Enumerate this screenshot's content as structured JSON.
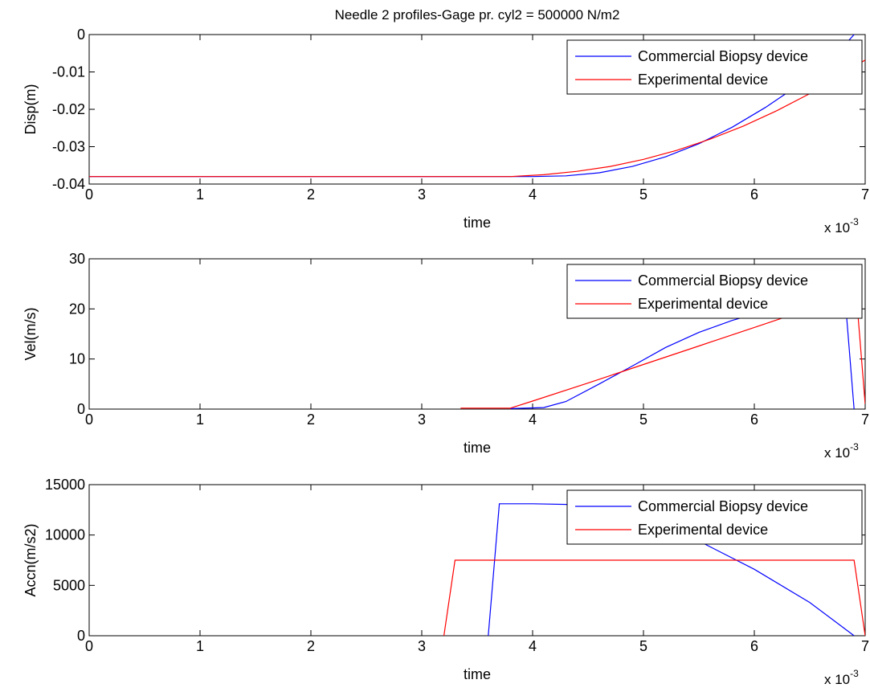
{
  "chart_data": [
    {
      "type": "line",
      "title": "Needle 2 profiles-Gage pr. cyl2 = 500000 N/m2",
      "xlabel": "time",
      "ylabel": "Disp(m)",
      "x_multiplier": "x 10",
      "x_exponent": "-3",
      "xlim": [
        0,
        7
      ],
      "ylim": [
        -0.04,
        0
      ],
      "xticks": [
        0,
        1,
        2,
        3,
        4,
        5,
        6,
        7
      ],
      "xtick_labels": [
        "0",
        "1",
        "2",
        "3",
        "4",
        "5",
        "6",
        "7"
      ],
      "yticks": [
        -0.04,
        -0.03,
        -0.02,
        -0.01,
        0
      ],
      "ytick_labels": [
        "-0.04",
        "-0.03",
        "-0.02",
        "-0.01",
        "0"
      ],
      "grid": false,
      "legend_position": "top-right",
      "series": [
        {
          "name": "Commercial Biopsy device",
          "color": "#0000ff",
          "x": [
            0,
            3.35,
            3.8,
            4.0,
            4.3,
            4.6,
            4.9,
            5.2,
            5.5,
            5.8,
            6.1,
            6.4,
            6.7,
            6.9
          ],
          "y": [
            -0.038,
            -0.038,
            -0.038,
            -0.038,
            -0.0378,
            -0.037,
            -0.0353,
            -0.0327,
            -0.0292,
            -0.0248,
            -0.0195,
            -0.0135,
            -0.0066,
            0.0
          ]
        },
        {
          "name": "Experimental device",
          "color": "#ff0000",
          "x": [
            0,
            3.3,
            3.8,
            4.1,
            4.4,
            4.7,
            5.0,
            5.3,
            5.6,
            5.9,
            6.2,
            6.5,
            6.8,
            7.0
          ],
          "y": [
            -0.038,
            -0.038,
            -0.038,
            -0.0375,
            -0.0366,
            -0.0353,
            -0.0334,
            -0.031,
            -0.028,
            -0.0245,
            -0.0204,
            -0.0158,
            -0.0106,
            -0.0068
          ]
        }
      ]
    },
    {
      "type": "line",
      "xlabel": "time",
      "ylabel": "Vel(m/s)",
      "x_multiplier": "x 10",
      "x_exponent": "-3",
      "xlim": [
        0,
        7
      ],
      "ylim": [
        0,
        30
      ],
      "xticks": [
        0,
        1,
        2,
        3,
        4,
        5,
        6,
        7
      ],
      "xtick_labels": [
        "0",
        "1",
        "2",
        "3",
        "4",
        "5",
        "6",
        "7"
      ],
      "yticks": [
        0,
        10,
        20,
        30
      ],
      "ytick_labels": [
        "0",
        "10",
        "20",
        "30"
      ],
      "grid": false,
      "legend_position": "top-right",
      "series": [
        {
          "name": "Commercial Biopsy device",
          "color": "#0000ff",
          "x": [
            3.8,
            4.1,
            4.3,
            4.6,
            4.9,
            5.2,
            5.5,
            5.8,
            6.1,
            6.4,
            6.7,
            6.82,
            6.9
          ],
          "y": [
            0.1,
            0.3,
            1.5,
            5.0,
            8.6,
            12.3,
            15.3,
            17.7,
            19.6,
            20.9,
            21.6,
            21.8,
            0.0
          ]
        },
        {
          "name": "Experimental device",
          "color": "#ff0000",
          "x": [
            3.35,
            3.8,
            4.0,
            4.5,
            5.0,
            5.5,
            6.0,
            6.5,
            6.88,
            6.92,
            7.0
          ],
          "y": [
            0.2,
            0.2,
            1.6,
            5.2,
            8.9,
            12.6,
            16.3,
            20.0,
            22.6,
            22.8,
            1.0
          ]
        }
      ]
    },
    {
      "type": "line",
      "xlabel": "time",
      "ylabel": "Accn(m/s2)",
      "x_multiplier": "x 10",
      "x_exponent": "-3",
      "xlim": [
        0,
        7
      ],
      "ylim": [
        0,
        15000
      ],
      "xticks": [
        0,
        1,
        2,
        3,
        4,
        5,
        6,
        7
      ],
      "xtick_labels": [
        "0",
        "1",
        "2",
        "3",
        "4",
        "5",
        "6",
        "7"
      ],
      "yticks": [
        0,
        5000,
        10000,
        15000
      ],
      "ytick_labels": [
        "0",
        "5000",
        "10000",
        "15000"
      ],
      "grid": false,
      "legend_position": "top-right",
      "series": [
        {
          "name": "Commercial Biopsy device",
          "color": "#0000ff",
          "x": [
            3.6,
            3.7,
            4.0,
            4.5,
            5.0,
            5.5,
            6.0,
            6.5,
            6.9
          ],
          "y": [
            0,
            13100,
            13100,
            13000,
            12300,
            9400,
            6600,
            3300,
            0
          ]
        },
        {
          "name": "Experimental device",
          "color": "#ff0000",
          "x": [
            3.2,
            3.3,
            6.9,
            7.0
          ],
          "y": [
            0,
            7500,
            7500,
            0
          ]
        }
      ]
    }
  ]
}
